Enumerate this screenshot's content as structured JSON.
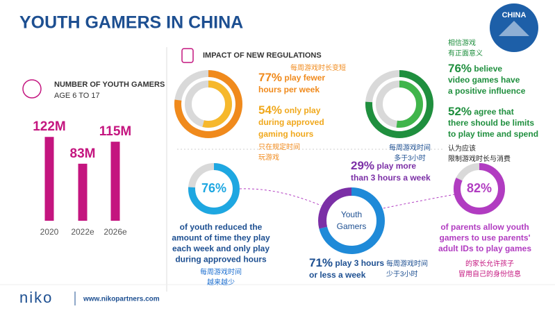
{
  "header": {
    "title": "YOUTH GAMERS IN CHINA",
    "badge": "CHINA",
    "section_title": "IMPACT OF NEW REGULATIONS"
  },
  "chart_data": [
    {
      "type": "bar",
      "title": "NUMBER OF YOUTH GAMERS",
      "subtitle": "AGE 6 TO 17",
      "categories": [
        "2020",
        "2022e",
        "2026e"
      ],
      "values": [
        122,
        83,
        115
      ],
      "value_labels": [
        "122M",
        "83M",
        "115M"
      ],
      "color": "#c4157f"
    },
    {
      "type": "ring",
      "values": [
        77,
        54
      ],
      "value_labels": [
        "77%",
        "54%"
      ],
      "colors": [
        "#f08a1c",
        "#f6b82c"
      ],
      "notes": [
        [
          "play fewer",
          "hours per week"
        ],
        [
          "only play",
          "during approved",
          "gaming hours"
        ]
      ],
      "notes_zh": [
        [
          "每周游戏时长变短"
        ],
        [
          "只在规定时间",
          "玩游戏"
        ]
      ]
    },
    {
      "type": "ring",
      "values": [
        76,
        52
      ],
      "value_labels": [
        "76%",
        "52%"
      ],
      "colors": [
        "#1f8f3e",
        "#40b54b"
      ],
      "notes": [
        [
          "believe",
          "video games have",
          "a positive influence"
        ],
        [
          "agree that",
          "there should be limits",
          "to play time and spend"
        ]
      ],
      "notes_zh": [
        [
          "相信游戏",
          "有正面意义"
        ],
        [
          "认为应该",
          "限制游戏时长与消费"
        ]
      ]
    },
    {
      "type": "ring",
      "values": [
        76
      ],
      "value_labels": [
        "76%"
      ],
      "colors": [
        "#1ea7e1"
      ],
      "notes": [
        [
          "of youth reduced the",
          "amount of time they play",
          "each week and only play",
          "during approved hours"
        ]
      ],
      "notes_zh": [
        [
          "每周游戏时间",
          "越来越少"
        ]
      ]
    },
    {
      "type": "donut",
      "values": [
        71,
        29
      ],
      "value_labels": [
        "71%",
        "29%"
      ],
      "colors": [
        "#1f8ad8",
        "#7b2fa6"
      ],
      "center": [
        "Youth",
        "Gamers"
      ],
      "notes": [
        [
          "play 3 hours",
          "or less a week"
        ],
        [
          "play more",
          "than 3 hours a week"
        ]
      ],
      "notes_zh": [
        [
          "每周游戏时间",
          "少于3小时"
        ],
        [
          "每周游戏时间",
          "多于3小时"
        ]
      ]
    },
    {
      "type": "ring",
      "values": [
        82
      ],
      "value_labels": [
        "82%"
      ],
      "colors": [
        "#b13cc1"
      ],
      "notes": [
        [
          "of parents allow youth",
          "gamers to use parents'",
          "adult IDs to play games"
        ]
      ],
      "notes_zh": [
        [
          "的家长允许孩子",
          "冒用自己的身份信息"
        ]
      ]
    }
  ],
  "footer": {
    "brand": "niko",
    "url": "www.nikopartners.com"
  }
}
